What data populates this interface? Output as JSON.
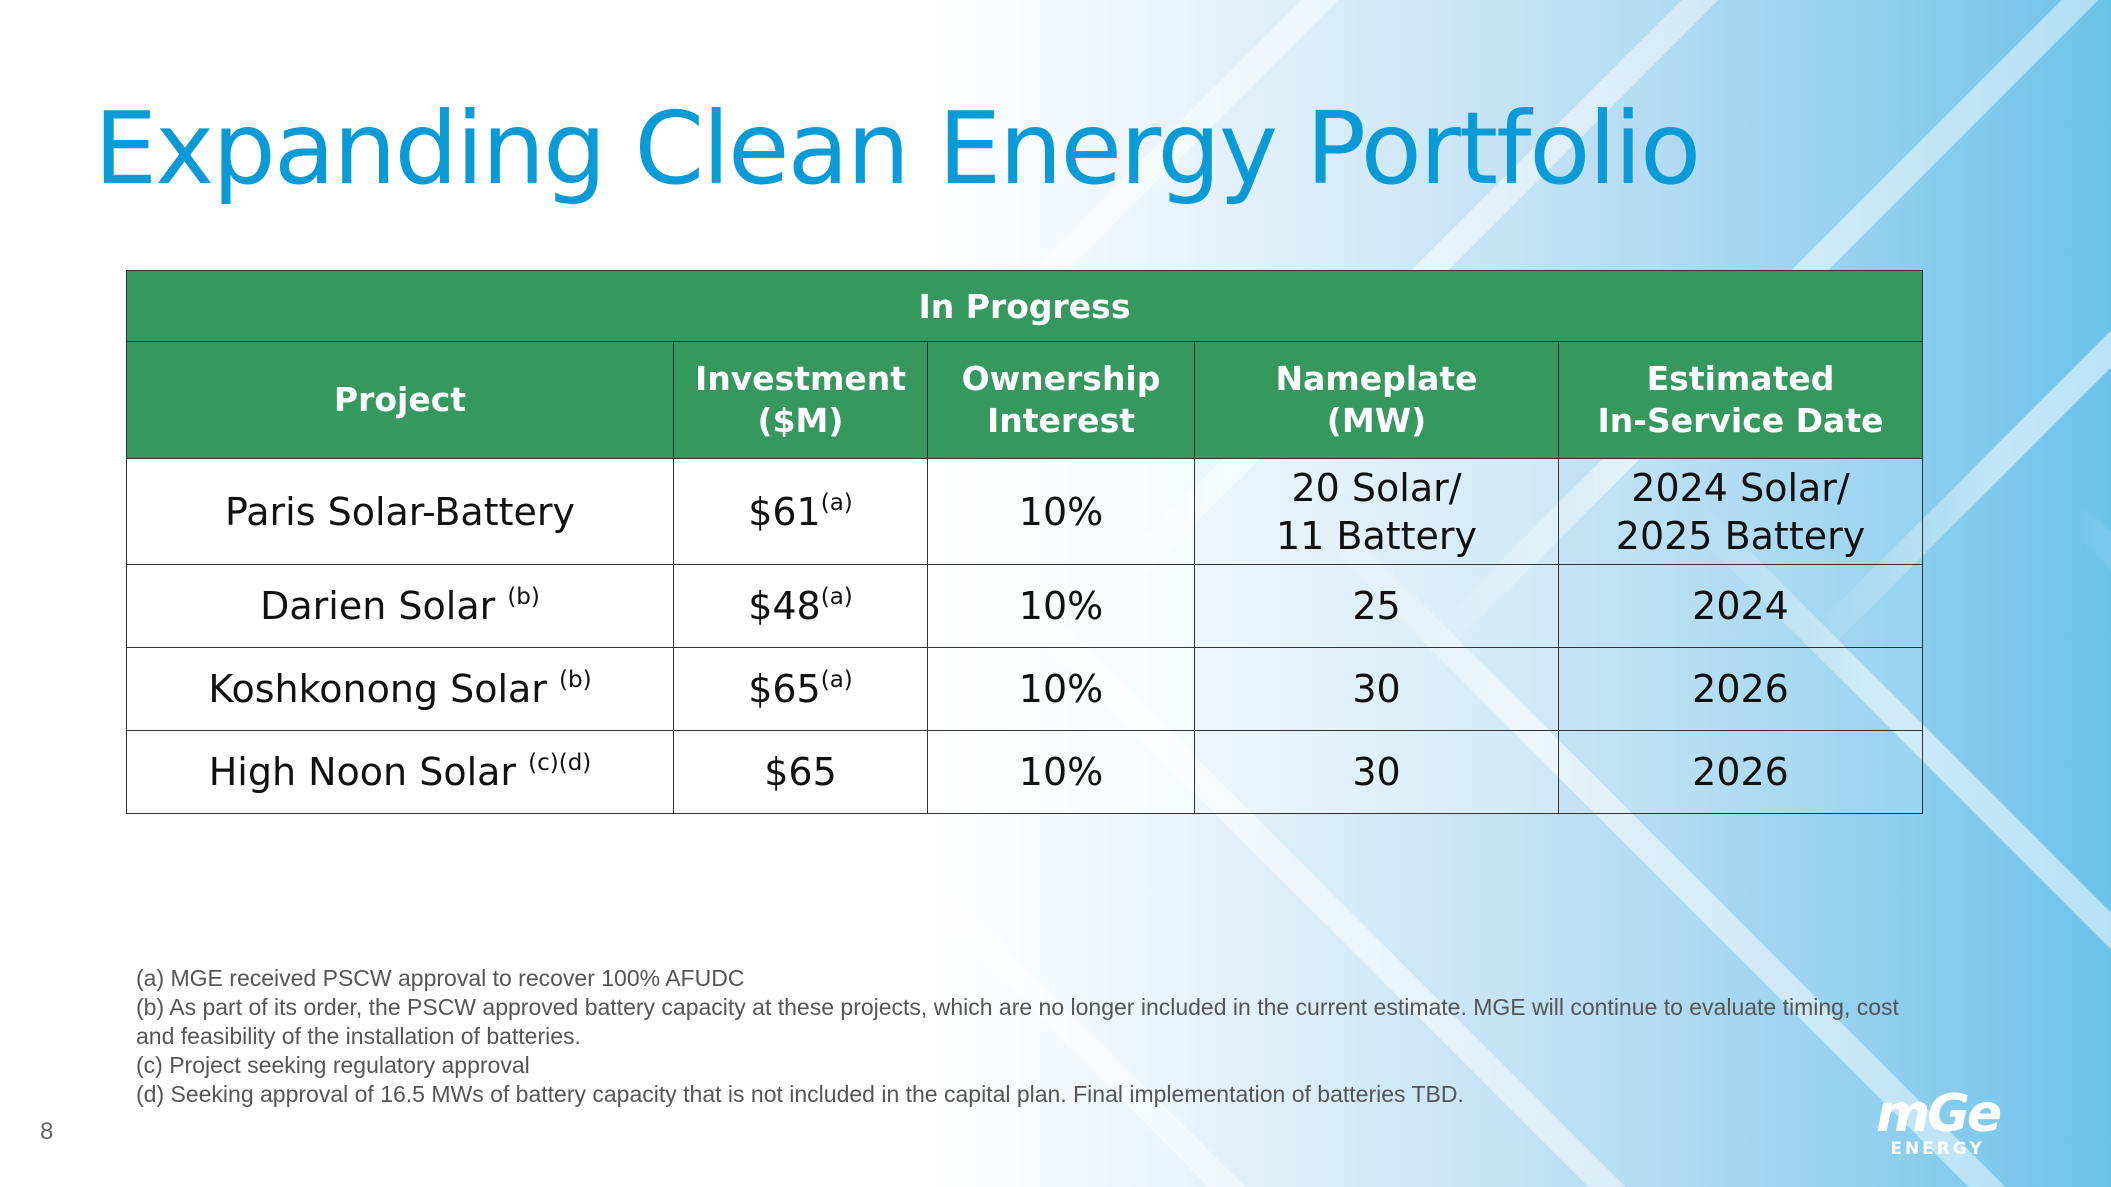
{
  "title": "Expanding Clean Energy Portfolio",
  "table": {
    "band": "In Progress",
    "headers": {
      "project": "Project",
      "investment_l1": "Investment",
      "investment_l2": "($M)",
      "ownership_l1": "Ownership",
      "ownership_l2": "Interest",
      "nameplate_l1": "Nameplate",
      "nameplate_l2": "(MW)",
      "date_l1": "Estimated",
      "date_l2": "In-Service Date"
    },
    "rows": [
      {
        "project": "Paris Solar-Battery",
        "project_note": "",
        "investment": "$61",
        "investment_note": "(a)",
        "ownership": "10%",
        "nameplate_l1": "20 Solar/",
        "nameplate_l2": "11 Battery",
        "date_l1": "2024 Solar/",
        "date_l2": "2025 Battery"
      },
      {
        "project": "Darien Solar",
        "project_note": "(b)",
        "investment": "$48",
        "investment_note": "(a)",
        "ownership": "10%",
        "nameplate": "25",
        "date": "2024"
      },
      {
        "project": "Koshkonong Solar",
        "project_note": "(b)",
        "investment": "$65",
        "investment_note": "(a)",
        "ownership": "10%",
        "nameplate": "30",
        "date": "2026"
      },
      {
        "project": "High Noon Solar",
        "project_note": "(c)(d)",
        "investment": "$65",
        "investment_note": "",
        "ownership": "10%",
        "nameplate": "30",
        "date": "2026"
      }
    ]
  },
  "footnotes": [
    "(a)  MGE received PSCW approval to recover 100% AFUDC",
    "(b)  As part of its order, the PSCW approved battery capacity at these projects, which are no longer included in the current estimate. MGE will continue to evaluate timing, cost and feasibility of the installation of batteries.",
    "(c)  Project seeking regulatory approval",
    "(d)  Seeking approval of 16.5 MWs of battery capacity that is not included in the capital plan. Final implementation of batteries TBD."
  ],
  "page_number": "8",
  "logo": {
    "main": "mGe",
    "sub": "ENERGY"
  },
  "colors": {
    "title": "#0a9ad6",
    "header_green": "#34985f",
    "background_blue": "#6cc3ea"
  }
}
